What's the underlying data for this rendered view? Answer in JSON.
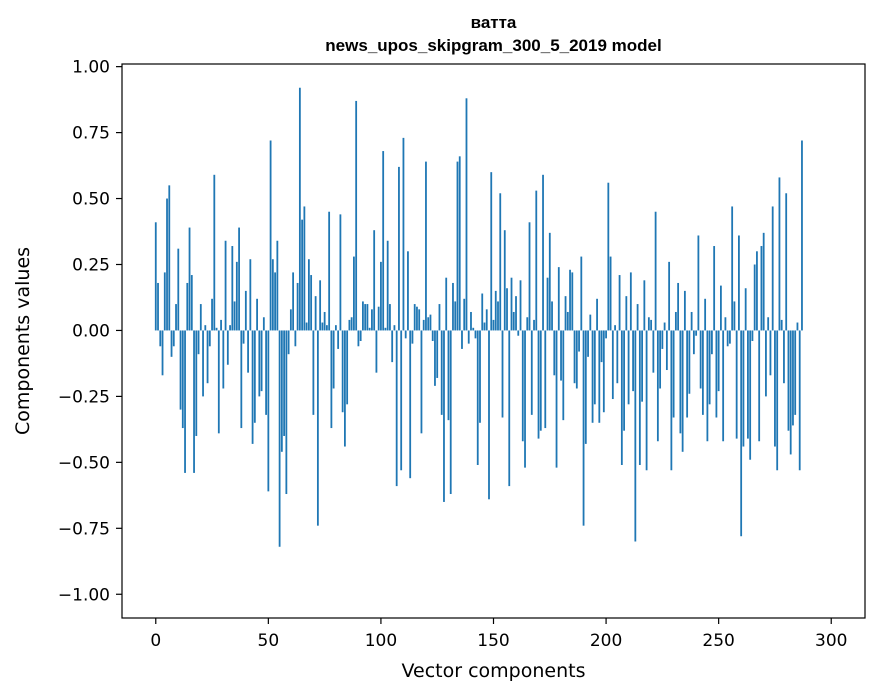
{
  "chart_data": {
    "type": "bar",
    "title_line1": "ватта",
    "title_line2": "news_upos_skipgram_300_5_2019 model",
    "xlabel": "Vector components",
    "ylabel": "Components values",
    "xlim": [
      -15,
      315
    ],
    "ylim": [
      -1.09,
      1.01
    ],
    "xticks": [
      0,
      50,
      100,
      150,
      200,
      250,
      300
    ],
    "xtick_labels": [
      "0",
      "50",
      "100",
      "150",
      "200",
      "250",
      "300"
    ],
    "yticks": [
      1.0,
      0.75,
      0.5,
      0.25,
      0.0,
      -0.25,
      -0.5,
      -0.75,
      -1.0
    ],
    "ytick_labels": [
      "1.00",
      "0.75",
      "0.50",
      "0.25",
      "0.00",
      "−0.25",
      "−0.50",
      "−0.75",
      "−1.00"
    ],
    "bar_color": "#1f77b4",
    "values": [
      0.41,
      0.18,
      -0.06,
      -0.17,
      0.22,
      0.5,
      0.55,
      -0.1,
      -0.06,
      0.1,
      0.31,
      -0.3,
      -0.37,
      -0.54,
      0.18,
      0.39,
      0.21,
      -0.54,
      -0.4,
      -0.09,
      0.1,
      -0.25,
      0.02,
      -0.2,
      -0.06,
      0.12,
      0.59,
      0.01,
      -0.39,
      0.04,
      -0.22,
      0.34,
      -0.13,
      0.02,
      0.32,
      0.11,
      0.26,
      0.39,
      -0.37,
      -0.05,
      0.15,
      -0.16,
      0.27,
      -0.43,
      -0.35,
      0.12,
      -0.25,
      -0.23,
      0.05,
      -0.32,
      -0.61,
      0.72,
      0.27,
      0.22,
      0.34,
      -0.82,
      -0.46,
      -0.4,
      -0.62,
      -0.09,
      0.08,
      0.22,
      -0.06,
      0.18,
      0.92,
      0.42,
      0.47,
      0.03,
      0.27,
      0.21,
      -0.32,
      0.13,
      -0.74,
      0.19,
      0.03,
      0.07,
      0.02,
      0.45,
      -0.37,
      -0.22,
      0.02,
      -0.07,
      0.44,
      -0.31,
      -0.44,
      -0.28,
      0.04,
      0.05,
      0.28,
      0.87,
      -0.06,
      -0.04,
      0.11,
      0.1,
      0.1,
      0.01,
      0.08,
      0.38,
      -0.16,
      0.09,
      0.26,
      0.68,
      0.01,
      0.34,
      0.1,
      -0.12,
      0.02,
      -0.59,
      0.62,
      -0.53,
      0.73,
      -0.03,
      0.3,
      -0.56,
      -0.05,
      0.1,
      0.09,
      0.08,
      -0.39,
      0.04,
      0.64,
      0.05,
      0.06,
      -0.04,
      -0.21,
      -0.18,
      0.1,
      -0.32,
      -0.65,
      0.2,
      -0.34,
      -0.62,
      0.18,
      0.11,
      0.64,
      0.66,
      -0.07,
      0.12,
      0.88,
      -0.05,
      0.07,
      0.01,
      -0.03,
      -0.51,
      -0.35,
      0.14,
      0.03,
      0.08,
      -0.64,
      0.6,
      0.04,
      0.15,
      0.11,
      0.52,
      -0.33,
      0.38,
      0.16,
      -0.59,
      0.2,
      0.07,
      0.13,
      -0.02,
      0.19,
      -0.42,
      -0.52,
      0.05,
      0.41,
      -0.32,
      0.04,
      0.53,
      -0.41,
      -0.38,
      0.59,
      -0.37,
      0.2,
      0.37,
      0.11,
      -0.17,
      -0.52,
      0.24,
      -0.19,
      -0.34,
      0.13,
      0.07,
      0.23,
      0.22,
      -0.2,
      -0.22,
      -0.08,
      0.28,
      -0.74,
      -0.43,
      -0.1,
      0.06,
      -0.35,
      -0.28,
      0.12,
      -0.35,
      -0.12,
      -0.31,
      -0.03,
      0.56,
      0.28,
      -0.26,
      0.02,
      -0.2,
      0.21,
      -0.51,
      -0.38,
      0.13,
      -0.28,
      0.22,
      -0.23,
      -0.8,
      0.1,
      -0.51,
      -0.27,
      0.19,
      -0.53,
      0.05,
      0.04,
      -0.16,
      0.45,
      -0.42,
      -0.22,
      -0.07,
      0.03,
      -0.15,
      0.26,
      -0.53,
      -0.33,
      0.07,
      0.18,
      -0.39,
      -0.46,
      0.15,
      -0.33,
      -0.24,
      0.07,
      -0.09,
      -0.02,
      0.36,
      -0.22,
      -0.32,
      0.12,
      -0.42,
      -0.28,
      -0.09,
      0.32,
      -0.33,
      -0.23,
      0.17,
      -0.42,
      0.05,
      -0.06,
      -0.05,
      0.47,
      0.11,
      -0.41,
      0.36,
      -0.78,
      -0.44,
      0.16,
      -0.41,
      -0.49,
      -0.04,
      0.25,
      0.3,
      -0.42,
      0.32,
      0.37,
      -0.25,
      0.05,
      -0.17,
      0.47,
      -0.44,
      -0.53,
      0.58,
      0.04,
      -0.2,
      0.52,
      -0.38,
      -0.47,
      -0.36,
      -0.32,
      0.03,
      -0.53,
      0.72
    ]
  }
}
